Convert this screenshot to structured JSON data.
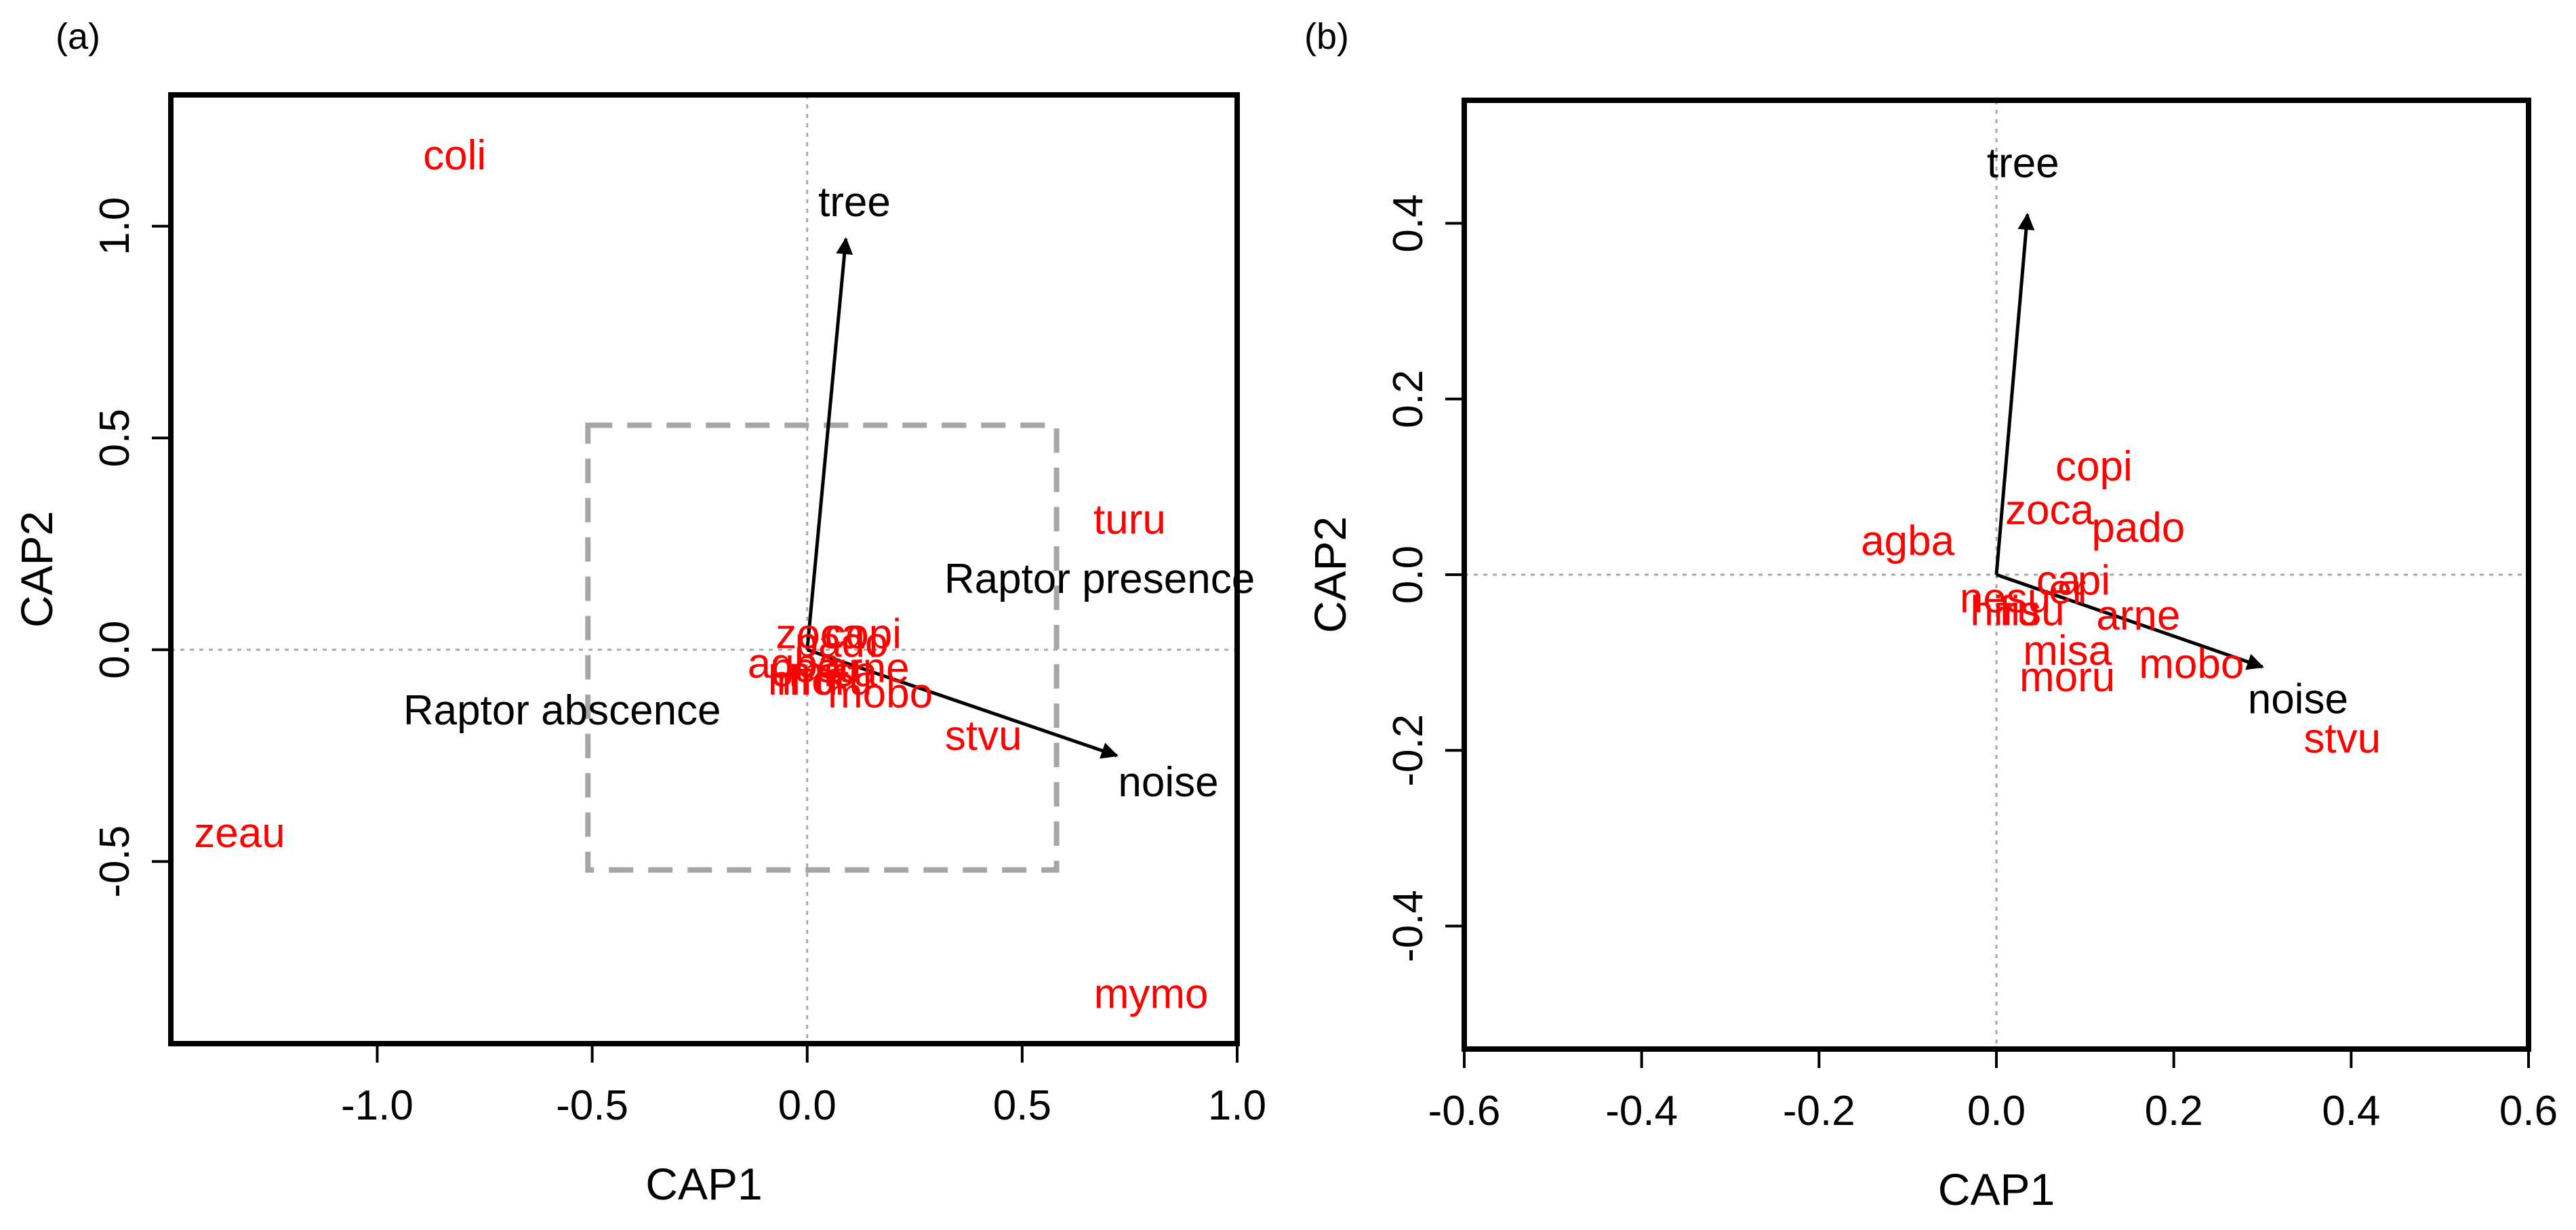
{
  "figure": {
    "colors": {
      "species": "#ff0000",
      "vector": "#000000",
      "frame": "#000000",
      "zero_line": "#a8a8a8",
      "dashed_box": "#a6a6a6"
    }
  },
  "chart_data": [
    {
      "id": "a",
      "type": "scatter",
      "panel_label": "(a)",
      "xlabel": "CAP1",
      "ylabel": "CAP2",
      "xlim": [
        -1.48,
        1.0
      ],
      "ylim": [
        -0.93,
        1.31
      ],
      "xticks": [
        -1.0,
        -0.5,
        0.0,
        0.5,
        1.0
      ],
      "xtick_labels": [
        "-1.0",
        "-0.5",
        "0.0",
        "0.5",
        "1.0"
      ],
      "yticks": [
        -0.5,
        0.0,
        0.5,
        1.0
      ],
      "ytick_labels": [
        "-0.5",
        "0.0",
        "0.5",
        "1.0"
      ],
      "zero_lines": true,
      "species": [
        {
          "label": "coli",
          "x": -0.82,
          "y": 1.16
        },
        {
          "label": "turu",
          "x": 0.75,
          "y": 0.3
        },
        {
          "label": "zeau",
          "x": -1.32,
          "y": -0.44
        },
        {
          "label": "mymo",
          "x": 0.8,
          "y": -0.82
        },
        {
          "label": "stvu",
          "x": 0.41,
          "y": -0.21
        },
        {
          "label": "zoca",
          "x": 0.03,
          "y": 0.03
        },
        {
          "label": "copi",
          "x": 0.13,
          "y": 0.03
        },
        {
          "label": "pado",
          "x": 0.08,
          "y": 0.01
        },
        {
          "label": "agba",
          "x": -0.03,
          "y": -0.04
        },
        {
          "label": "arne",
          "x": 0.14,
          "y": -0.05
        },
        {
          "label": "misa",
          "x": 0.06,
          "y": -0.06
        },
        {
          "label": "moru",
          "x": 0.04,
          "y": -0.08
        },
        {
          "label": "hiru",
          "x": -0.01,
          "y": -0.08
        },
        {
          "label": "mobo",
          "x": 0.17,
          "y": -0.11
        },
        {
          "label": "nesu",
          "x": 0.02,
          "y": -0.05
        }
      ],
      "vectors": [
        {
          "label": "tree",
          "x": 0.09,
          "y": 0.97,
          "label_x": 0.11,
          "label_y": 1.05
        },
        {
          "label": "noise",
          "x": 0.72,
          "y": -0.25,
          "label_x": 0.84,
          "label_y": -0.32
        }
      ],
      "annotations": [
        {
          "text": "Raptor presence",
          "x": 0.68,
          "y": 0.16
        },
        {
          "text": "Raptor abscence",
          "x": -0.57,
          "y": -0.15
        }
      ],
      "zoom_box": {
        "x0": -0.51,
        "x1": 0.58,
        "y0": -0.52,
        "y1": 0.53
      }
    },
    {
      "id": "b",
      "type": "scatter",
      "panel_label": "(b)",
      "xlabel": "CAP1",
      "ylabel": "CAP2",
      "xlim": [
        -0.6,
        0.6
      ],
      "ylim": [
        -0.54,
        0.54
      ],
      "xticks": [
        -0.6,
        -0.4,
        -0.2,
        0.0,
        0.2,
        0.4,
        0.6
      ],
      "xtick_labels": [
        "-0.6",
        "-0.4",
        "-0.2",
        "0.0",
        "0.2",
        "0.4",
        "0.6"
      ],
      "yticks": [
        -0.4,
        -0.2,
        0.0,
        0.2,
        0.4
      ],
      "ytick_labels": [
        "-0.4",
        "-0.2",
        "0.0",
        "0.2",
        "0.4"
      ],
      "zero_lines": true,
      "species": [
        {
          "label": "copi",
          "x": 0.11,
          "y": 0.12
        },
        {
          "label": "zoca",
          "x": 0.06,
          "y": 0.07
        },
        {
          "label": "pado",
          "x": 0.16,
          "y": 0.05
        },
        {
          "label": "agba",
          "x": -0.1,
          "y": 0.035
        },
        {
          "label": "arne",
          "x": 0.16,
          "y": -0.05
        },
        {
          "label": "misa",
          "x": 0.08,
          "y": -0.09
        },
        {
          "label": "mobo",
          "x": 0.22,
          "y": -0.105
        },
        {
          "label": "moru",
          "x": 0.08,
          "y": -0.12
        },
        {
          "label": "stvu",
          "x": 0.39,
          "y": -0.19
        },
        {
          "label": "nesu",
          "x": 0.01,
          "y": -0.03
        },
        {
          "label": "hiru",
          "x": 0.01,
          "y": -0.045
        },
        {
          "label": "fisu",
          "x": 0.04,
          "y": -0.045
        },
        {
          "label": "ca",
          "x": 0.07,
          "y": -0.01
        },
        {
          "label": "pi",
          "x": 0.11,
          "y": -0.01
        },
        {
          "label": "er",
          "x": 0.08,
          "y": -0.02
        }
      ],
      "vectors": [
        {
          "label": "tree",
          "x": 0.035,
          "y": 0.41,
          "label_x": 0.03,
          "label_y": 0.465
        },
        {
          "label": "noise",
          "x": 0.3,
          "y": -0.105,
          "label_x": 0.34,
          "label_y": -0.145
        }
      ],
      "annotations": []
    }
  ]
}
